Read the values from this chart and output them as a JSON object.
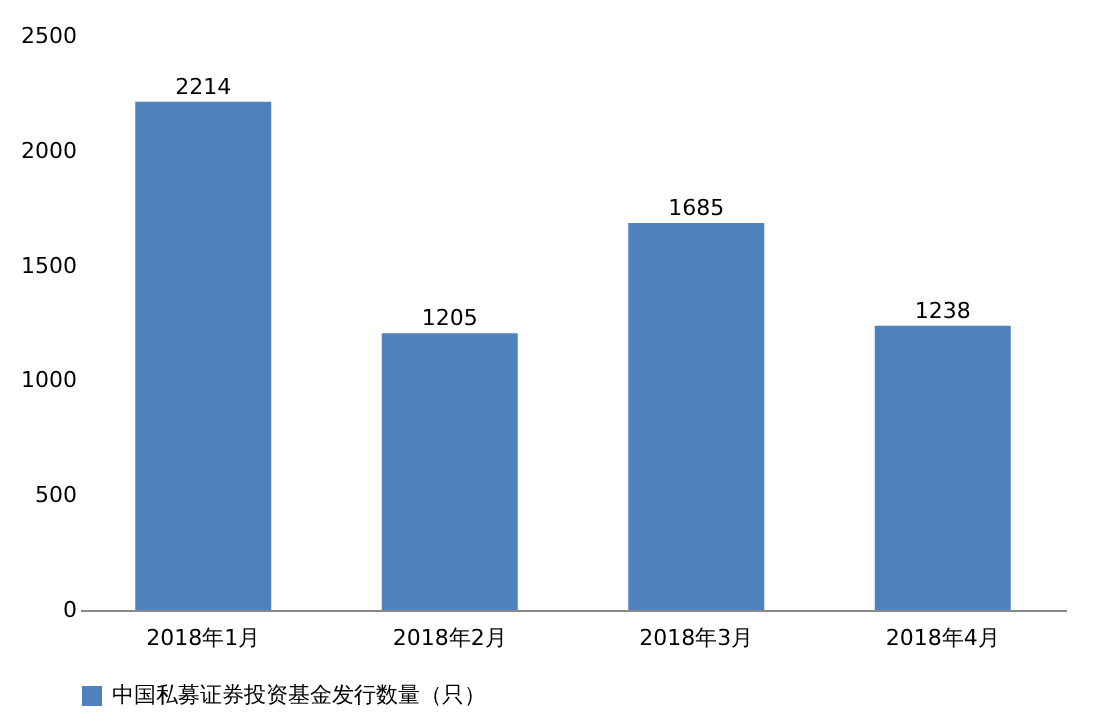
{
  "chart_data": {
    "type": "bar",
    "categories": [
      "2018年1月",
      "2018年2月",
      "2018年3月",
      "2018年4月"
    ],
    "series": [
      {
        "name": "中国私募证券投资基金发行数量（只）",
        "color": "#4f81bd",
        "values": [
          2214,
          1205,
          1685,
          1238
        ]
      }
    ],
    "ylim": [
      0,
      2500
    ],
    "yticks": [
      0,
      500,
      1000,
      1500,
      2000,
      2500
    ],
    "data_labels": true,
    "legend": "bottom",
    "grid": false
  }
}
